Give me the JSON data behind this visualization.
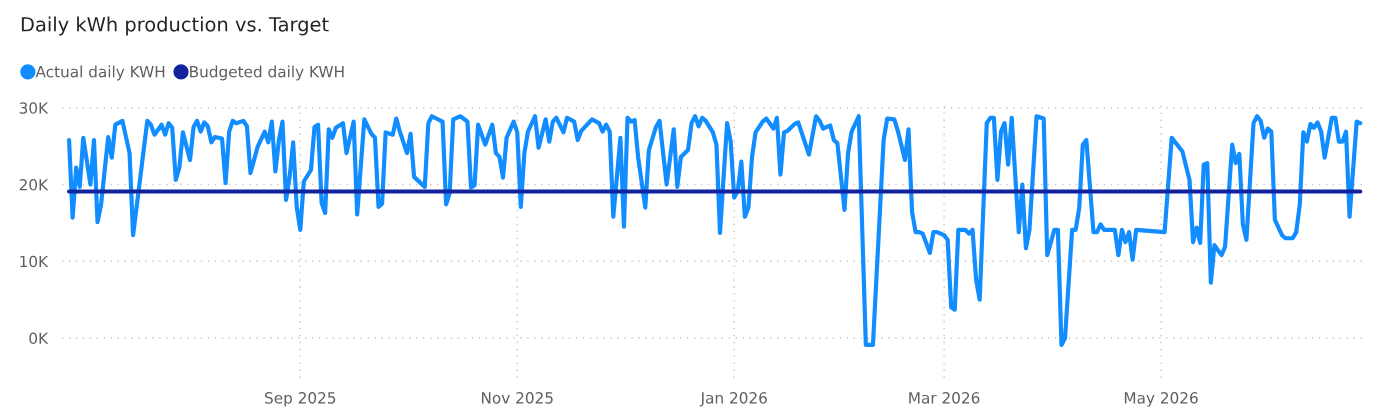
{
  "chart_data": {
    "type": "line",
    "title": "Daily kWh production vs. Target",
    "x": [
      "2025-06-28",
      "2025-06-29",
      "2025-06-30",
      "2025-07-01",
      "2025-07-02",
      "2025-07-04",
      "2025-07-05",
      "2025-07-06",
      "2025-07-07",
      "2025-07-09",
      "2025-07-10",
      "2025-07-11",
      "2025-07-13",
      "2025-07-15",
      "2025-07-16",
      "2025-07-20",
      "2025-07-21",
      "2025-07-22",
      "2025-07-24",
      "2025-07-25",
      "2025-07-26",
      "2025-07-27",
      "2025-07-28",
      "2025-07-29",
      "2025-07-30",
      "2025-08-01",
      "2025-08-02",
      "2025-08-03",
      "2025-08-04",
      "2025-08-05",
      "2025-08-06",
      "2025-08-07",
      "2025-08-08",
      "2025-08-10",
      "2025-08-11",
      "2025-08-12",
      "2025-08-13",
      "2025-08-14",
      "2025-08-16",
      "2025-08-17",
      "2025-08-18",
      "2025-08-20",
      "2025-08-22",
      "2025-08-23",
      "2025-08-24",
      "2025-08-25",
      "2025-08-26",
      "2025-08-27",
      "2025-08-28",
      "2025-08-29",
      "2025-08-30",
      "2025-08-31",
      "2025-09-01",
      "2025-09-02",
      "2025-09-04",
      "2025-09-05",
      "2025-09-06",
      "2025-09-07",
      "2025-09-08",
      "2025-09-09",
      "2025-09-10",
      "2025-09-11",
      "2025-09-13",
      "2025-09-14",
      "2025-09-16",
      "2025-09-17",
      "2025-09-19",
      "2025-09-21",
      "2025-09-22",
      "2025-09-23",
      "2025-09-24",
      "2025-09-25",
      "2025-09-27",
      "2025-09-28",
      "2025-09-29",
      "2025-10-01",
      "2025-10-02",
      "2025-10-03",
      "2025-10-06",
      "2025-10-07",
      "2025-10-08",
      "2025-10-11",
      "2025-10-12",
      "2025-10-13",
      "2025-10-14",
      "2025-10-16",
      "2025-10-18",
      "2025-10-19",
      "2025-10-20",
      "2025-10-21",
      "2025-10-23",
      "2025-10-25",
      "2025-10-26",
      "2025-10-27",
      "2025-10-28",
      "2025-10-29",
      "2025-10-31",
      "2025-11-01",
      "2025-11-02",
      "2025-11-03",
      "2025-11-04",
      "2025-11-06",
      "2025-11-07",
      "2025-11-09",
      "2025-11-10",
      "2025-11-11",
      "2025-11-12",
      "2025-11-14",
      "2025-11-15",
      "2025-11-17",
      "2025-11-18",
      "2025-11-19",
      "2025-11-22",
      "2025-11-24",
      "2025-11-25",
      "2025-11-26",
      "2025-11-27",
      "2025-11-28",
      "2025-11-30",
      "2025-12-01",
      "2025-12-02",
      "2025-12-03",
      "2025-12-04",
      "2025-12-05",
      "2025-12-07",
      "2025-12-08",
      "2025-12-10",
      "2025-12-11",
      "2025-12-13",
      "2025-12-15",
      "2025-12-16",
      "2025-12-17",
      "2025-12-19",
      "2025-12-20",
      "2025-12-21",
      "2025-12-22",
      "2025-12-23",
      "2025-12-24",
      "2025-12-26",
      "2025-12-27",
      "2025-12-28",
      "2025-12-30",
      "2025-12-31",
      "2026-01-01",
      "2026-01-02",
      "2026-01-03",
      "2026-01-04",
      "2026-01-05",
      "2026-01-06",
      "2026-01-07",
      "2026-01-09",
      "2026-01-10",
      "2026-01-12",
      "2026-01-13",
      "2026-01-14",
      "2026-01-15",
      "2026-01-16",
      "2026-01-18",
      "2026-01-19",
      "2026-01-22",
      "2026-01-24",
      "2026-01-25",
      "2026-01-26",
      "2026-01-28",
      "2026-01-29",
      "2026-01-30",
      "2026-02-01",
      "2026-02-02",
      "2026-02-03",
      "2026-02-05",
      "2026-02-07",
      "2026-02-09",
      "2026-02-12",
      "2026-02-13",
      "2026-02-15",
      "2026-02-16",
      "2026-02-18",
      "2026-02-19",
      "2026-02-20",
      "2026-02-21",
      "2026-02-22",
      "2026-02-23",
      "2026-02-25",
      "2026-02-26",
      "2026-02-27",
      "2026-03-01",
      "2026-03-02",
      "2026-03-03",
      "2026-03-04",
      "2026-03-05",
      "2026-03-07",
      "2026-03-08",
      "2026-03-09",
      "2026-03-10",
      "2026-03-11",
      "2026-03-13",
      "2026-03-14",
      "2026-03-15",
      "2026-03-16",
      "2026-03-17",
      "2026-03-18",
      "2026-03-19",
      "2026-03-20",
      "2026-03-22",
      "2026-03-23",
      "2026-03-24",
      "2026-03-25",
      "2026-03-27",
      "2026-03-29",
      "2026-03-30",
      "2026-04-01",
      "2026-04-02",
      "2026-04-03",
      "2026-04-04",
      "2026-04-06",
      "2026-04-07",
      "2026-04-08",
      "2026-04-09",
      "2026-04-10",
      "2026-04-12",
      "2026-04-13",
      "2026-04-14",
      "2026-04-15",
      "2026-04-18",
      "2026-04-19",
      "2026-04-20",
      "2026-04-21",
      "2026-04-22",
      "2026-04-23",
      "2026-04-24",
      "2026-05-02",
      "2026-05-04",
      "2026-05-07",
      "2026-05-09",
      "2026-05-10",
      "2026-05-11",
      "2026-05-12",
      "2026-05-13",
      "2026-05-14",
      "2026-05-15",
      "2026-05-16",
      "2026-05-18",
      "2026-05-19",
      "2026-05-21",
      "2026-05-22",
      "2026-05-23",
      "2026-05-24",
      "2026-05-25",
      "2026-05-27",
      "2026-05-28",
      "2026-05-29",
      "2026-05-30",
      "2026-05-31",
      "2026-06-01",
      "2026-06-02",
      "2026-06-04",
      "2026-06-05",
      "2026-06-07",
      "2026-06-08",
      "2026-06-09",
      "2026-06-10",
      "2026-06-11",
      "2026-06-12",
      "2026-06-13",
      "2026-06-14",
      "2026-06-15",
      "2026-06-16",
      "2026-06-17",
      "2026-06-18",
      "2026-06-19",
      "2026-06-20",
      "2026-06-21",
      "2026-06-22",
      "2026-06-23",
      "2026-06-25",
      "2026-06-26"
    ],
    "series": [
      {
        "name": "Actual daily KWH",
        "color": "#118dff",
        "values": [
          25800,
          15700,
          22200,
          19700,
          26100,
          20000,
          25800,
          15100,
          17400,
          26200,
          23500,
          27800,
          28300,
          24100,
          13400,
          28300,
          27800,
          26500,
          27800,
          26500,
          28000,
          27400,
          20600,
          22200,
          26800,
          23200,
          27500,
          28300,
          26900,
          28100,
          27600,
          25500,
          26200,
          26000,
          20200,
          26900,
          28300,
          28000,
          28300,
          27600,
          21500,
          24900,
          26900,
          25500,
          28200,
          21700,
          25800,
          28200,
          18000,
          21000,
          25500,
          17100,
          14100,
          20400,
          21900,
          27500,
          27800,
          17600,
          16300,
          27200,
          26100,
          27400,
          28000,
          24100,
          28200,
          16100,
          28500,
          26600,
          26100,
          17100,
          17500,
          26800,
          26500,
          28600,
          26900,
          24100,
          26600,
          21000,
          19700,
          28000,
          28900,
          28200,
          17400,
          18900,
          28500,
          28900,
          28200,
          19600,
          19900,
          27800,
          25200,
          27800,
          24100,
          23600,
          20900,
          26100,
          28200,
          26800,
          17100,
          24100,
          26900,
          28900,
          24800,
          28500,
          25600,
          28200,
          28700,
          26800,
          28700,
          28200,
          25800,
          27000,
          28500,
          28000,
          26900,
          27800,
          26900,
          15800,
          26100,
          14500,
          28700,
          28200,
          28400,
          23500,
          17000,
          24500,
          27500,
          28300,
          20000,
          27200,
          19700,
          23600,
          24500,
          28000,
          28900,
          27600,
          28700,
          28300,
          26800,
          25200,
          13700,
          28000,
          25600,
          18300,
          19200,
          23000,
          15800,
          17000,
          23600,
          26800,
          28200,
          28600,
          27300,
          28700,
          21300,
          26800,
          27000,
          27900,
          28100,
          23900,
          28900,
          28300,
          27300,
          27700,
          25800,
          25400,
          16700,
          24100,
          26900,
          28900,
          -900,
          -900,
          25800,
          28600,
          28500,
          27000,
          23200,
          27200,
          16400,
          13800,
          13800,
          13600,
          11100,
          13800,
          13800,
          13400,
          12800,
          4000,
          3700,
          14100,
          14100,
          13600,
          14100,
          7600,
          5000,
          28000,
          28700,
          28700,
          20600,
          26900,
          28000,
          22600,
          28700,
          13800,
          20000,
          11700,
          14100,
          28900,
          28600,
          10800,
          14100,
          14100,
          -900,
          0,
          14100,
          14100,
          17000,
          25200,
          25800,
          13800,
          13800,
          14800,
          14100,
          14100,
          10800,
          14100,
          12500,
          13800,
          10200,
          14100,
          13800,
          26100,
          24300,
          20600,
          12500,
          14400,
          12400,
          22600,
          22800,
          7200,
          12100,
          10800,
          11900,
          25200,
          22800,
          24000,
          14800,
          12800,
          28000,
          28900,
          28300,
          26100,
          27300,
          26900,
          15400,
          13400,
          13000,
          13000,
          13800,
          17400,
          26800,
          25600,
          27900,
          27400,
          28100,
          26900,
          23500,
          26100,
          28700,
          28700,
          25600,
          25600,
          26900,
          15800,
          28200,
          28000
        ]
      },
      {
        "name": "Budgeted daily KWH",
        "color": "#12239e",
        "x": [
          "2025-06-28",
          "2026-06-26"
        ],
        "values": [
          19100,
          19100
        ]
      }
    ],
    "ylim": [
      -5200,
      31000
    ],
    "yticks": [
      {
        "value": 0,
        "label": "0K"
      },
      {
        "value": 10000,
        "label": "10K"
      },
      {
        "value": 20000,
        "label": "20K"
      },
      {
        "value": 30000,
        "label": "30K"
      }
    ],
    "xlim": [
      "2025-06-26",
      "2026-06-28"
    ],
    "xticks": [
      {
        "value": "2025-09-01",
        "label": "Sep 2025"
      },
      {
        "value": "2025-11-01",
        "label": "Nov 2025"
      },
      {
        "value": "2026-01-01",
        "label": "Jan 2026"
      },
      {
        "value": "2026-03-01",
        "label": "Mar 2026"
      },
      {
        "value": "2026-05-01",
        "label": "May 2026"
      }
    ],
    "grid": true,
    "legend": "top left",
    "marker": "none",
    "line_style": "solid"
  }
}
